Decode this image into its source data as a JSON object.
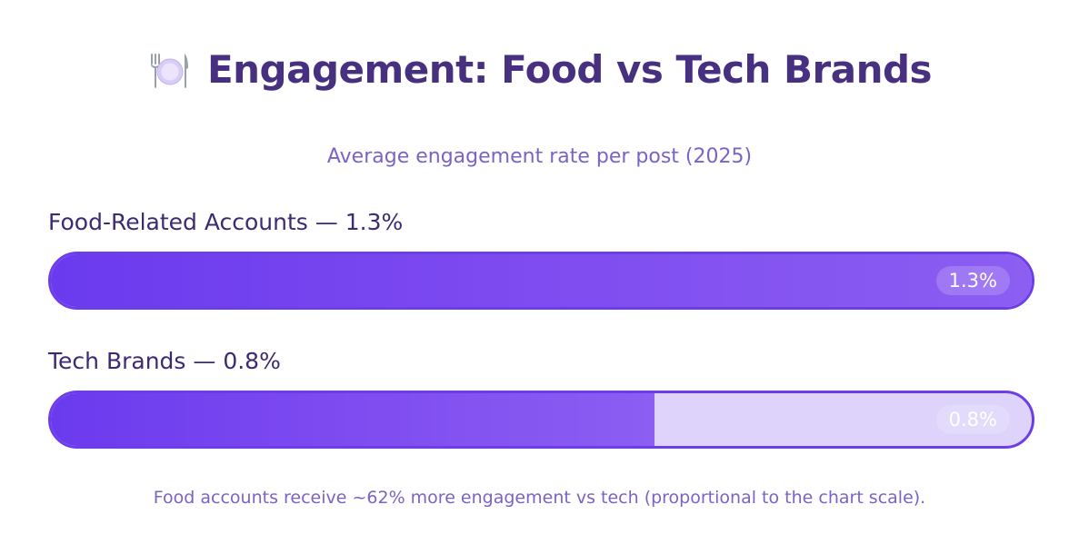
{
  "header": {
    "title": "Engagement: Food vs Tech Brands",
    "icon": "plate-cutlery-icon",
    "subtitle": "Average engagement rate per post (2025)"
  },
  "colors": {
    "title": "#46307f",
    "accent": "#6d3ee8",
    "bar_fill_start": "#6a3aee",
    "bar_fill_end": "#8c5ef2",
    "track": "#ddd3fb",
    "subtle_text": "#7b63c6"
  },
  "chart_data": {
    "type": "bar",
    "orientation": "horizontal",
    "title": "Engagement: Food vs Tech Brands",
    "subtitle": "Average engagement rate per post (2025)",
    "unit": "%",
    "xlim": [
      0,
      1.3
    ],
    "categories": [
      "Food-Related Accounts",
      "Tech Brands"
    ],
    "values": [
      1.3,
      0.8
    ],
    "bars": [
      {
        "label": "Food-Related Accounts — 1.3%",
        "value": 1.3,
        "value_label": "1.3%"
      },
      {
        "label": "Tech Brands — 0.8%",
        "value": 0.8,
        "value_label": "0.8%"
      }
    ],
    "annotation": "Food accounts receive ~62% more engagement vs tech (proportional to the chart scale)."
  }
}
